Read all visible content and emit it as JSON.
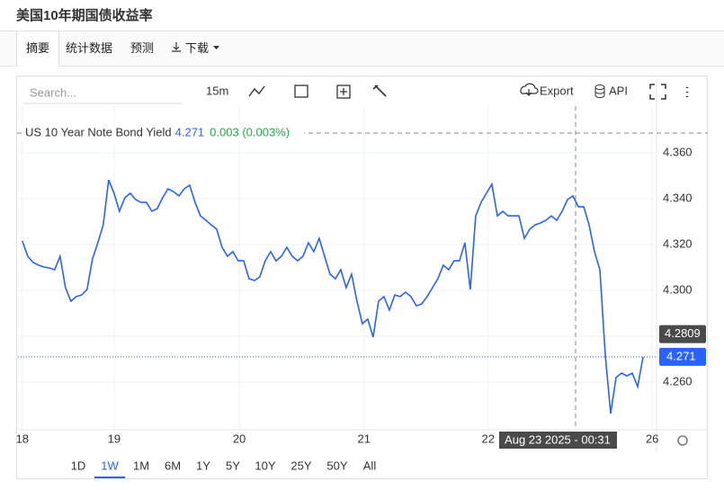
{
  "header": {
    "title": "美国10年期国债收益率"
  },
  "tabs": [
    "摘要",
    "统计数据",
    "预测",
    "下载"
  ],
  "active_tab": 0,
  "toolbar": {
    "search_placeholder": "Search...",
    "interval": "15m",
    "export": "Export",
    "api": "API"
  },
  "chart_data": {
    "type": "line",
    "series": [
      {
        "name": "US 10 Year Note Bond Yield",
        "color": "#2962ff",
        "values": [
          4.3216,
          4.3149,
          4.3122,
          4.311,
          4.3102,
          4.3098,
          4.309,
          4.3149,
          4.3012,
          4.2953,
          4.2973,
          4.298,
          4.3004,
          4.3137,
          4.3208,
          4.3286,
          4.3482,
          4.3424,
          4.3345,
          4.3404,
          4.3424,
          4.3396,
          4.3384,
          4.3384,
          4.3345,
          4.3357,
          4.3404,
          4.3443,
          4.3431,
          4.3412,
          4.3443,
          4.3459,
          4.3384,
          4.3325,
          4.3306,
          4.3286,
          4.3267,
          4.3188,
          4.3149,
          4.3169,
          4.3129,
          4.3129,
          4.3051,
          4.3043,
          4.3059,
          4.3129,
          4.3169,
          4.3129,
          4.3149,
          4.3188,
          4.3149,
          4.3129,
          4.3149,
          4.3208,
          4.3169,
          4.3227,
          4.3149,
          4.3071,
          4.3051,
          4.309,
          4.3012,
          4.3071,
          4.2953,
          4.2855,
          4.2875,
          4.2796,
          4.2953,
          4.2973,
          4.2914,
          4.298,
          4.2973,
          4.2992,
          4.2973,
          4.2933,
          4.2941,
          4.2973,
          4.3012,
          4.3051,
          4.311,
          4.309,
          4.3129,
          4.3129,
          4.3208,
          4.3004,
          4.3325,
          4.3384,
          4.3424,
          4.3463,
          4.3325,
          4.3345,
          4.3325,
          4.3325,
          4.3325,
          4.3227,
          4.3267,
          4.3286,
          4.3294,
          4.3306,
          4.3325,
          4.3306,
          4.3345,
          4.3396,
          4.3412,
          4.3365,
          4.3365,
          4.3286,
          4.3169,
          4.309,
          4.2718,
          4.2463,
          4.262,
          4.2639,
          4.2627,
          4.2639,
          4.258,
          4.271
        ]
      }
    ],
    "last_value": 4.271,
    "change": "0.003 (0.003%)",
    "marker_value": 4.2809,
    "ylim": [
      4.2392,
      4.3804
    ],
    "yticks": [
      {
        "value": 4.26,
        "label": "4.260"
      },
      {
        "value": 4.28,
        "label": "4.280"
      },
      {
        "value": 4.3,
        "label": "4.300"
      },
      {
        "value": 4.32,
        "label": "4.320"
      },
      {
        "value": 4.34,
        "label": "4.340"
      },
      {
        "value": 4.36,
        "label": "4.360"
      }
    ],
    "xlim": [
      -0.8,
      117.5
    ],
    "xticks": [
      {
        "value": 0,
        "label": "18"
      },
      {
        "value": 17,
        "label": "19"
      },
      {
        "value": 40.2,
        "label": "20"
      },
      {
        "value": 63.3,
        "label": "21"
      },
      {
        "value": 86.3,
        "label": "22"
      },
      {
        "value": 116.7,
        "label": "26"
      }
    ],
    "crosshair": {
      "x": 102.5,
      "label": "Aug 23 2025 - 00:31"
    },
    "grid": true
  },
  "ranges": [
    "1D",
    "1W",
    "1M",
    "6M",
    "1Y",
    "5Y",
    "10Y",
    "25Y",
    "50Y",
    "All"
  ],
  "active_range": 1
}
